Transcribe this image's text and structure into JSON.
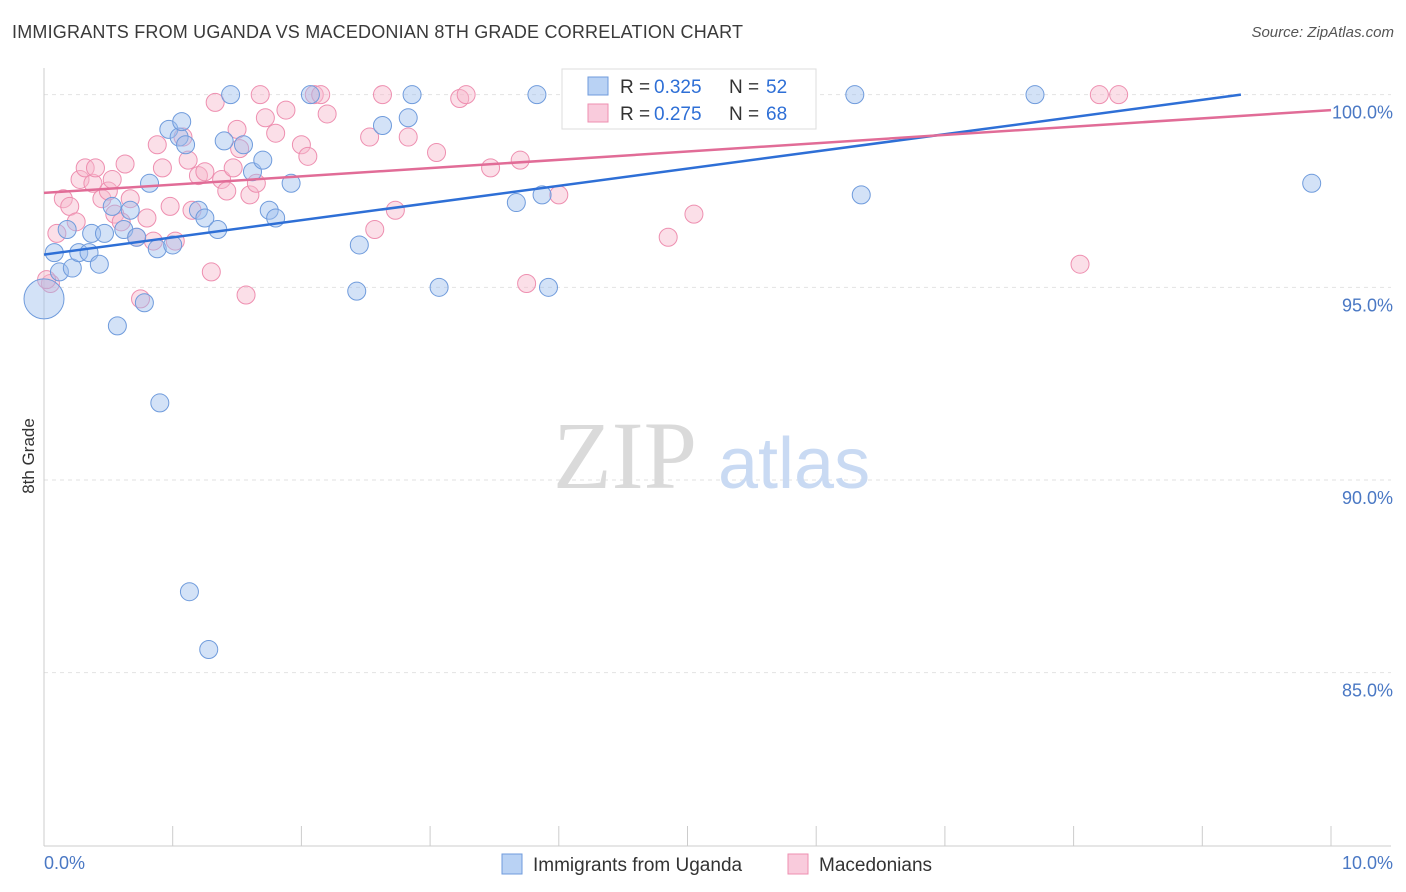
{
  "title": "IMMIGRANTS FROM UGANDA VS MACEDONIAN 8TH GRADE CORRELATION CHART",
  "source": "Source: ZipAtlas.com",
  "watermark": {
    "zip": "ZIP",
    "atlas": "atlas"
  },
  "chart_data": {
    "type": "scatter",
    "title": "IMMIGRANTS FROM UGANDA VS MACEDONIAN 8TH GRADE CORRELATION CHART",
    "xlabel": "",
    "ylabel": "8th Grade",
    "xlim": [
      0,
      10
    ],
    "ylim": [
      80.5,
      100.9
    ],
    "x_tick_labels": {
      "left": "0.0%",
      "right": "10.0%"
    },
    "y_ticks": [
      {
        "value": 100,
        "label": "100.0%"
      },
      {
        "value": 95,
        "label": "95.0%"
      },
      {
        "value": 90,
        "label": "90.0%"
      },
      {
        "value": 85,
        "label": "85.0%"
      }
    ],
    "legend_stats": [
      {
        "r_label": "R = ",
        "r": "0.325",
        "n_label": "N = ",
        "n": "52"
      },
      {
        "r_label": "R = ",
        "r": "0.275",
        "n_label": "N = ",
        "n": "68"
      }
    ],
    "series": [
      {
        "name": "Immigrants from Uganda",
        "color": "#9dbfee",
        "stroke": "#6f9bdc",
        "line_color": "#2e6fd6",
        "trend": {
          "x0": 0.0,
          "y0": 95.85,
          "x1": 9.3,
          "y1": 100.0
        },
        "points": [
          [
            0.08,
            95.9
          ],
          [
            0.12,
            95.4
          ],
          [
            0.18,
            96.5
          ],
          [
            0.22,
            95.5
          ],
          [
            0.27,
            95.9
          ],
          [
            0.35,
            95.9
          ],
          [
            0.37,
            96.4
          ],
          [
            0.43,
            95.6
          ],
          [
            0.47,
            96.4
          ],
          [
            0.53,
            97.1
          ],
          [
            0.57,
            94.0
          ],
          [
            0.62,
            96.5
          ],
          [
            0.67,
            97.0
          ],
          [
            0.72,
            96.3
          ],
          [
            0.78,
            94.6
          ],
          [
            0.82,
            97.7
          ],
          [
            0.88,
            96.0
          ],
          [
            0.9,
            92.0
          ],
          [
            0.97,
            99.1
          ],
          [
            1.0,
            96.1
          ],
          [
            1.05,
            98.9
          ],
          [
            1.07,
            99.3
          ],
          [
            1.1,
            98.7
          ],
          [
            1.13,
            87.1
          ],
          [
            1.2,
            97.0
          ],
          [
            1.25,
            96.8
          ],
          [
            1.28,
            85.6
          ],
          [
            1.35,
            96.5
          ],
          [
            1.4,
            98.8
          ],
          [
            1.45,
            100.0
          ],
          [
            1.55,
            98.7
          ],
          [
            1.62,
            98.0
          ],
          [
            1.7,
            98.3
          ],
          [
            1.75,
            97.0
          ],
          [
            1.8,
            96.8
          ],
          [
            1.92,
            97.7
          ],
          [
            2.07,
            100.0
          ],
          [
            2.43,
            94.9
          ],
          [
            2.45,
            96.1
          ],
          [
            2.63,
            99.2
          ],
          [
            2.83,
            99.4
          ],
          [
            2.86,
            100.0
          ],
          [
            3.07,
            95.0
          ],
          [
            3.67,
            97.2
          ],
          [
            3.83,
            100.0
          ],
          [
            3.87,
            97.4
          ],
          [
            3.92,
            95.0
          ],
          [
            6.3,
            100.0
          ],
          [
            6.35,
            97.4
          ],
          [
            7.7,
            100.0
          ],
          [
            9.85,
            97.7
          ]
        ],
        "big_point": [
          0.0,
          94.7
        ]
      },
      {
        "name": "Macedonians",
        "color": "#f6b8cd",
        "stroke": "#ee8fb0",
        "line_color": "#e16c97",
        "trend": {
          "x0": 0.0,
          "y0": 97.45,
          "x1": 10.0,
          "y1": 99.6
        },
        "points": [
          [
            0.05,
            95.1
          ],
          [
            0.1,
            96.4
          ],
          [
            0.15,
            97.3
          ],
          [
            0.2,
            97.1
          ],
          [
            0.25,
            96.7
          ],
          [
            0.28,
            97.8
          ],
          [
            0.32,
            98.1
          ],
          [
            0.38,
            97.7
          ],
          [
            0.4,
            98.1
          ],
          [
            0.45,
            97.3
          ],
          [
            0.5,
            97.5
          ],
          [
            0.53,
            97.8
          ],
          [
            0.55,
            96.9
          ],
          [
            0.6,
            96.7
          ],
          [
            0.63,
            98.2
          ],
          [
            0.67,
            97.3
          ],
          [
            0.72,
            96.3
          ],
          [
            0.75,
            94.7
          ],
          [
            0.8,
            96.8
          ],
          [
            0.85,
            96.2
          ],
          [
            0.88,
            98.7
          ],
          [
            0.92,
            98.1
          ],
          [
            0.98,
            97.1
          ],
          [
            1.02,
            96.2
          ],
          [
            1.08,
            98.9
          ],
          [
            1.12,
            98.3
          ],
          [
            1.15,
            97.0
          ],
          [
            1.2,
            97.9
          ],
          [
            1.25,
            98.0
          ],
          [
            1.3,
            95.4
          ],
          [
            1.33,
            99.8
          ],
          [
            1.38,
            97.8
          ],
          [
            1.42,
            97.5
          ],
          [
            1.47,
            98.1
          ],
          [
            1.5,
            99.1
          ],
          [
            1.52,
            98.6
          ],
          [
            1.57,
            94.8
          ],
          [
            1.6,
            97.4
          ],
          [
            1.65,
            97.7
          ],
          [
            1.68,
            100.0
          ],
          [
            1.72,
            99.4
          ],
          [
            1.8,
            99.0
          ],
          [
            1.88,
            99.6
          ],
          [
            2.0,
            98.7
          ],
          [
            2.05,
            98.4
          ],
          [
            2.1,
            100.0
          ],
          [
            2.15,
            100.0
          ],
          [
            2.2,
            99.5
          ],
          [
            2.53,
            98.9
          ],
          [
            2.57,
            96.5
          ],
          [
            2.63,
            100.0
          ],
          [
            2.73,
            97.0
          ],
          [
            2.83,
            98.9
          ],
          [
            3.05,
            98.5
          ],
          [
            3.23,
            99.9
          ],
          [
            3.28,
            100.0
          ],
          [
            3.47,
            98.1
          ],
          [
            3.7,
            98.3
          ],
          [
            3.75,
            95.1
          ],
          [
            4.0,
            97.4
          ],
          [
            4.15,
            99.4
          ],
          [
            4.2,
            100.0
          ],
          [
            4.85,
            96.3
          ],
          [
            5.05,
            96.9
          ],
          [
            8.05,
            95.6
          ],
          [
            8.2,
            100.0
          ],
          [
            8.35,
            100.0
          ],
          [
            0.02,
            95.2
          ]
        ]
      }
    ]
  }
}
